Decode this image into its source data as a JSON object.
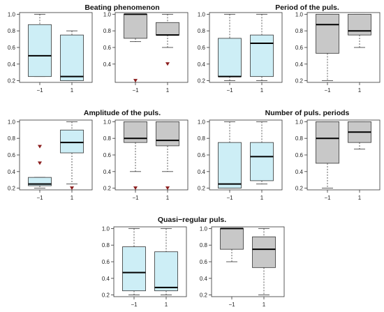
{
  "colors": {
    "fill_blue": "#cdeef6",
    "fill_gray": "#c8c8c8",
    "outlier": "#8b1d1d",
    "stroke": "#333333"
  },
  "chart_data": [
    {
      "type": "boxplot",
      "title": "Beating phenomenon",
      "panels": [
        {
          "fill": "blue",
          "categories": [
            "−1",
            "1"
          ],
          "ylim": [
            0.18,
            1.02
          ],
          "yticks": [
            0.2,
            0.4,
            0.6,
            0.8,
            1.0
          ],
          "ytick_labels": [
            "0.2",
            "0.4",
            "0.6",
            "0.8",
            "1.0"
          ],
          "boxes": [
            {
              "min": 0.25,
              "q1": 0.25,
              "median": 0.5,
              "q3": 0.875,
              "max": 1.0,
              "outliers": []
            },
            {
              "min": 0.2,
              "q1": 0.2,
              "median": 0.25,
              "q3": 0.75,
              "max": 0.8,
              "outliers": []
            }
          ]
        },
        {
          "fill": "gray",
          "categories": [
            "−1",
            "1"
          ],
          "ylim": [
            0.18,
            1.02
          ],
          "yticks": [
            0.4,
            0.6,
            0.8,
            1.0
          ],
          "ytick_labels": [
            "0.4",
            "0.6",
            "0.8",
            "1.0"
          ],
          "boxes": [
            {
              "min": 0.67,
              "q1": 0.71,
              "median": 1.0,
              "q3": 1.0,
              "max": 1.0,
              "outliers": [
                0.2
              ]
            },
            {
              "min": 0.6,
              "q1": 0.75,
              "median": 0.75,
              "q3": 0.9,
              "max": 1.0,
              "outliers": [
                0.4
              ]
            }
          ]
        }
      ]
    },
    {
      "type": "boxplot",
      "title": "Period of the puls.",
      "panels": [
        {
          "fill": "blue",
          "categories": [
            "−1",
            "1"
          ],
          "ylim": [
            0.18,
            1.02
          ],
          "yticks": [
            0.2,
            0.4,
            0.6,
            0.8,
            1.0
          ],
          "ytick_labels": [
            "0.2",
            "0.4",
            "0.6",
            "0.8",
            "1.0"
          ],
          "boxes": [
            {
              "min": 0.2,
              "q1": 0.25,
              "median": 0.25,
              "q3": 0.71,
              "max": 1.0,
              "outliers": []
            },
            {
              "min": 0.2,
              "q1": 0.25,
              "median": 0.65,
              "q3": 0.75,
              "max": 1.0,
              "outliers": []
            }
          ]
        },
        {
          "fill": "gray",
          "categories": [
            "−1",
            "1"
          ],
          "ylim": [
            0.18,
            1.02
          ],
          "yticks": [
            0.2,
            0.4,
            0.6,
            0.8,
            1.0
          ],
          "ytick_labels": [
            "0.2",
            "0.4",
            "0.6",
            "0.8",
            "1.0"
          ],
          "boxes": [
            {
              "min": 0.2,
              "q1": 0.53,
              "median": 0.875,
              "q3": 1.0,
              "max": 1.0,
              "outliers": []
            },
            {
              "min": 0.6,
              "q1": 0.75,
              "median": 0.8,
              "q3": 1.0,
              "max": 1.0,
              "outliers": []
            }
          ]
        }
      ]
    },
    {
      "type": "boxplot",
      "title": "Amplitude of the puls.",
      "panels": [
        {
          "fill": "blue",
          "categories": [
            "−1",
            "1"
          ],
          "ylim": [
            0.18,
            1.02
          ],
          "yticks": [
            0.2,
            0.4,
            0.6,
            0.8,
            1.0
          ],
          "ytick_labels": [
            "0.2",
            "0.4",
            "0.6",
            "0.8",
            "1.0"
          ],
          "boxes": [
            {
              "min": 0.2,
              "q1": 0.23,
              "median": 0.25,
              "q3": 0.33,
              "max": 0.33,
              "outliers": [
                0.7,
                0.5
              ]
            },
            {
              "min": 0.25,
              "q1": 0.625,
              "median": 0.75,
              "q3": 0.9,
              "max": 1.0,
              "outliers": [
                0.2
              ]
            }
          ]
        },
        {
          "fill": "gray",
          "categories": [
            "−1",
            "1"
          ],
          "ylim": [
            0.18,
            1.02
          ],
          "yticks": [
            0.2,
            0.4,
            0.6,
            0.8,
            1.0
          ],
          "ytick_labels": [
            "0.2",
            "0.4",
            "0.6",
            "0.8",
            "1.0"
          ],
          "boxes": [
            {
              "min": 0.4,
              "q1": 0.75,
              "median": 0.8,
              "q3": 1.0,
              "max": 1.0,
              "outliers": [
                0.2
              ]
            },
            {
              "min": 0.4,
              "q1": 0.71,
              "median": 0.775,
              "q3": 1.0,
              "max": 1.0,
              "outliers": [
                0.2
              ]
            }
          ]
        }
      ]
    },
    {
      "type": "boxplot",
      "title": "Number of puls. periods",
      "panels": [
        {
          "fill": "blue",
          "categories": [
            "−1",
            "1"
          ],
          "ylim": [
            0.18,
            1.02
          ],
          "yticks": [
            0.2,
            0.4,
            0.6,
            0.8,
            1.0
          ],
          "ytick_labels": [
            "0.2",
            "0.4",
            "0.6",
            "0.8",
            "1.0"
          ],
          "boxes": [
            {
              "min": 0.2,
              "q1": 0.2,
              "median": 0.25,
              "q3": 0.75,
              "max": 1.0,
              "outliers": []
            },
            {
              "min": 0.25,
              "q1": 0.29,
              "median": 0.58,
              "q3": 0.75,
              "max": 1.0,
              "outliers": []
            }
          ]
        },
        {
          "fill": "gray",
          "categories": [
            "−1",
            "1"
          ],
          "ylim": [
            0.18,
            1.02
          ],
          "yticks": [
            0.2,
            0.4,
            0.6,
            0.8,
            1.0
          ],
          "ytick_labels": [
            "0.2",
            "0.4",
            "0.6",
            "0.8",
            "1.0"
          ],
          "boxes": [
            {
              "min": 0.2,
              "q1": 0.5,
              "median": 0.8,
              "q3": 1.0,
              "max": 1.0,
              "outliers": []
            },
            {
              "min": 0.67,
              "q1": 0.75,
              "median": 0.875,
              "q3": 1.0,
              "max": 1.0,
              "outliers": []
            }
          ]
        }
      ]
    },
    {
      "type": "boxplot",
      "title": "Quasi−regular puls.",
      "panels": [
        {
          "fill": "blue",
          "categories": [
            "−1",
            "1"
          ],
          "ylim": [
            0.18,
            1.02
          ],
          "yticks": [
            0.2,
            0.4,
            0.6,
            0.8,
            1.0
          ],
          "ytick_labels": [
            "0.2",
            "0.4",
            "0.6",
            "0.8",
            "1.0"
          ],
          "boxes": [
            {
              "min": 0.2,
              "q1": 0.25,
              "median": 0.47,
              "q3": 0.78,
              "max": 1.0,
              "outliers": []
            },
            {
              "min": 0.2,
              "q1": 0.25,
              "median": 0.29,
              "q3": 0.72,
              "max": 1.0,
              "outliers": []
            }
          ]
        },
        {
          "fill": "gray",
          "categories": [
            "−1",
            "1"
          ],
          "ylim": [
            0.18,
            1.02
          ],
          "yticks": [
            0.2,
            0.4,
            0.6,
            0.8,
            1.0
          ],
          "ytick_labels": [
            "0.2",
            "0.4",
            "0.6",
            "0.8",
            "1.0"
          ],
          "boxes": [
            {
              "min": 0.6,
              "q1": 0.75,
              "median": 1.0,
              "q3": 1.0,
              "max": 1.0,
              "outliers": []
            },
            {
              "min": 0.2,
              "q1": 0.53,
              "median": 0.75,
              "q3": 0.9,
              "max": 1.0,
              "outliers": []
            }
          ]
        }
      ]
    }
  ]
}
